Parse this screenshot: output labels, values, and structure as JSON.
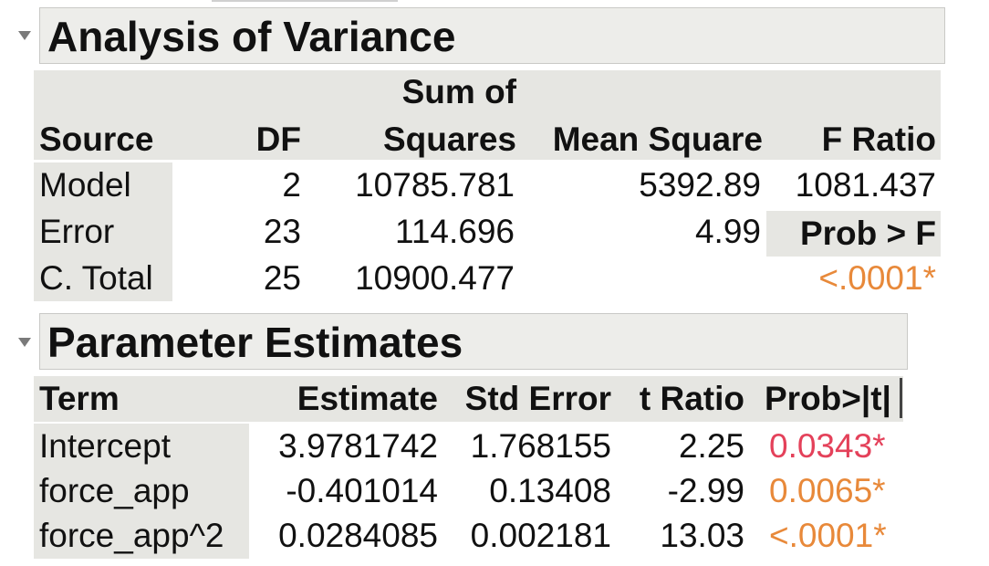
{
  "anova": {
    "title": "Analysis of Variance",
    "headers": {
      "source": "Source",
      "df": "DF",
      "ss_line1": "Sum of",
      "ss_line2": "Squares",
      "ms": "Mean Square",
      "f": "F Ratio"
    },
    "rows": [
      {
        "source": "Model",
        "df": "2",
        "ss": "10785.781",
        "ms": "5392.89",
        "f": "1081.437"
      },
      {
        "source": "Error",
        "df": "23",
        "ss": "114.696",
        "ms": "4.99"
      },
      {
        "source": "C. Total",
        "df": "25",
        "ss": "10900.477"
      }
    ],
    "prob_label": "Prob > F",
    "prob_value": "<.0001*",
    "prob_color": "#e8893a"
  },
  "params": {
    "title": "Parameter Estimates",
    "headers": {
      "term": "Term",
      "estimate": "Estimate",
      "stderr": "Std Error",
      "tratio": "t Ratio",
      "prob": "Prob>|t|"
    },
    "rows": [
      {
        "term": "Intercept",
        "estimate": "3.9781742",
        "stderr": "1.768155",
        "tratio": "2.25",
        "prob": "0.0343*",
        "prob_color": "#e4415a"
      },
      {
        "term": "force_app",
        "estimate": "-0.401014",
        "stderr": "0.13408",
        "tratio": "-2.99",
        "prob": "0.0065*",
        "prob_color": "#e8893a"
      },
      {
        "term": "force_app^2",
        "estimate": "0.0284085",
        "stderr": "0.002181",
        "tratio": "13.03",
        "prob": "<.0001*",
        "prob_color": "#e8893a"
      }
    ]
  },
  "icons": {
    "disclosure": "disclosure-triangle-icon"
  }
}
